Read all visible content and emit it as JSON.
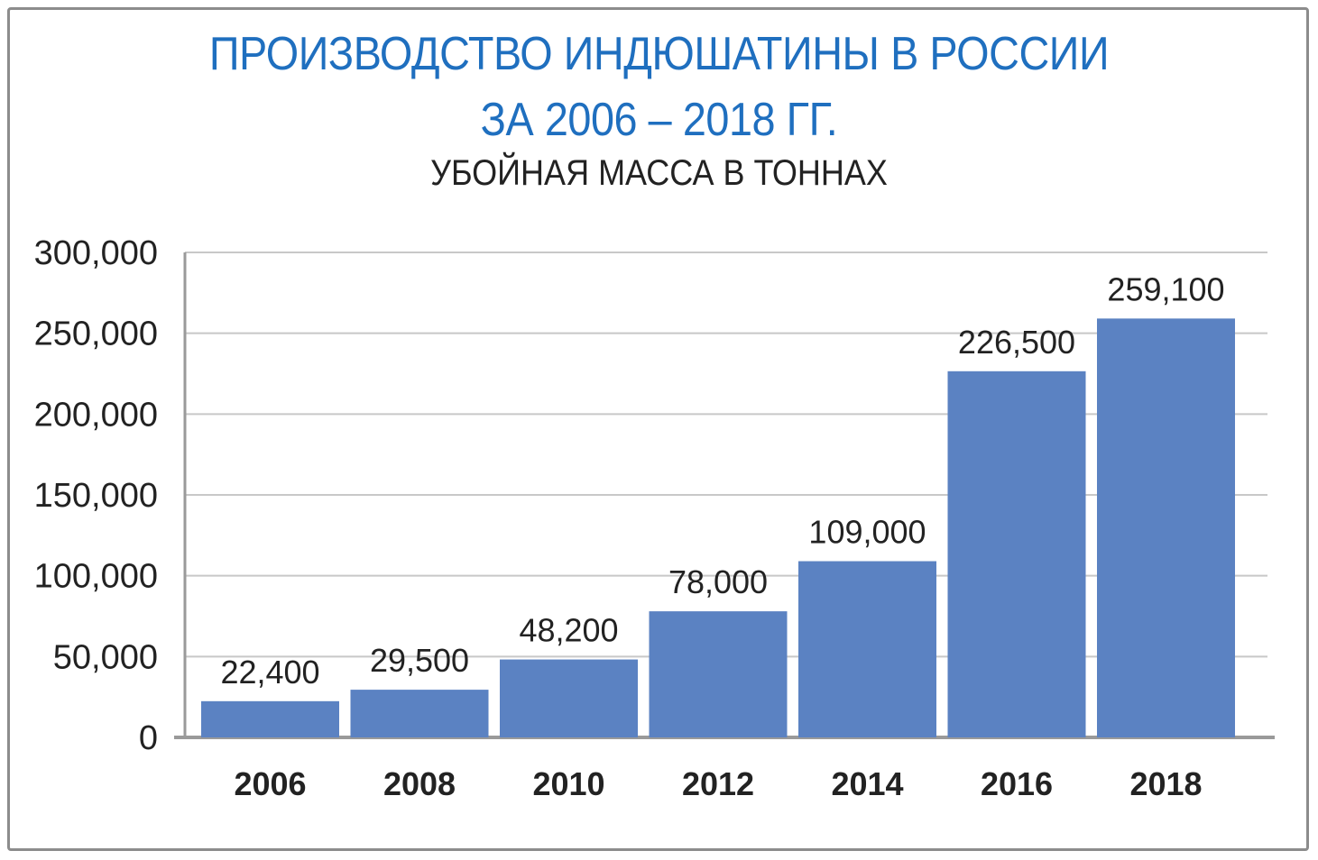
{
  "chart_data": {
    "type": "bar",
    "title": "ПРОИЗВОДСТВО ИНДЮШАТИНЫ В РОССИИ",
    "title_line2": "ЗА 2006 – 2018 ГГ.",
    "subtitle": "УБОЙНАЯ МАССА В ТОННАХ",
    "categories": [
      "2006",
      "2008",
      "2010",
      "2012",
      "2014",
      "2016",
      "2018"
    ],
    "values": [
      22400,
      29500,
      48200,
      78000,
      109000,
      226500,
      259100
    ],
    "data_labels": [
      "22,400",
      "29,500",
      "48,200",
      "78,000",
      "109,000",
      "226,500",
      "259,100"
    ],
    "yticks": [
      "0",
      "50,000",
      "100,000",
      "150,000",
      "200,000",
      "250,000",
      "300,000"
    ],
    "ylim": [
      0,
      300000
    ],
    "grid": true,
    "colors": {
      "bar": "#5b82c2",
      "title": "#1f6fbf",
      "grid": "#c8c8c8",
      "axis": "#9a9a9a"
    }
  }
}
